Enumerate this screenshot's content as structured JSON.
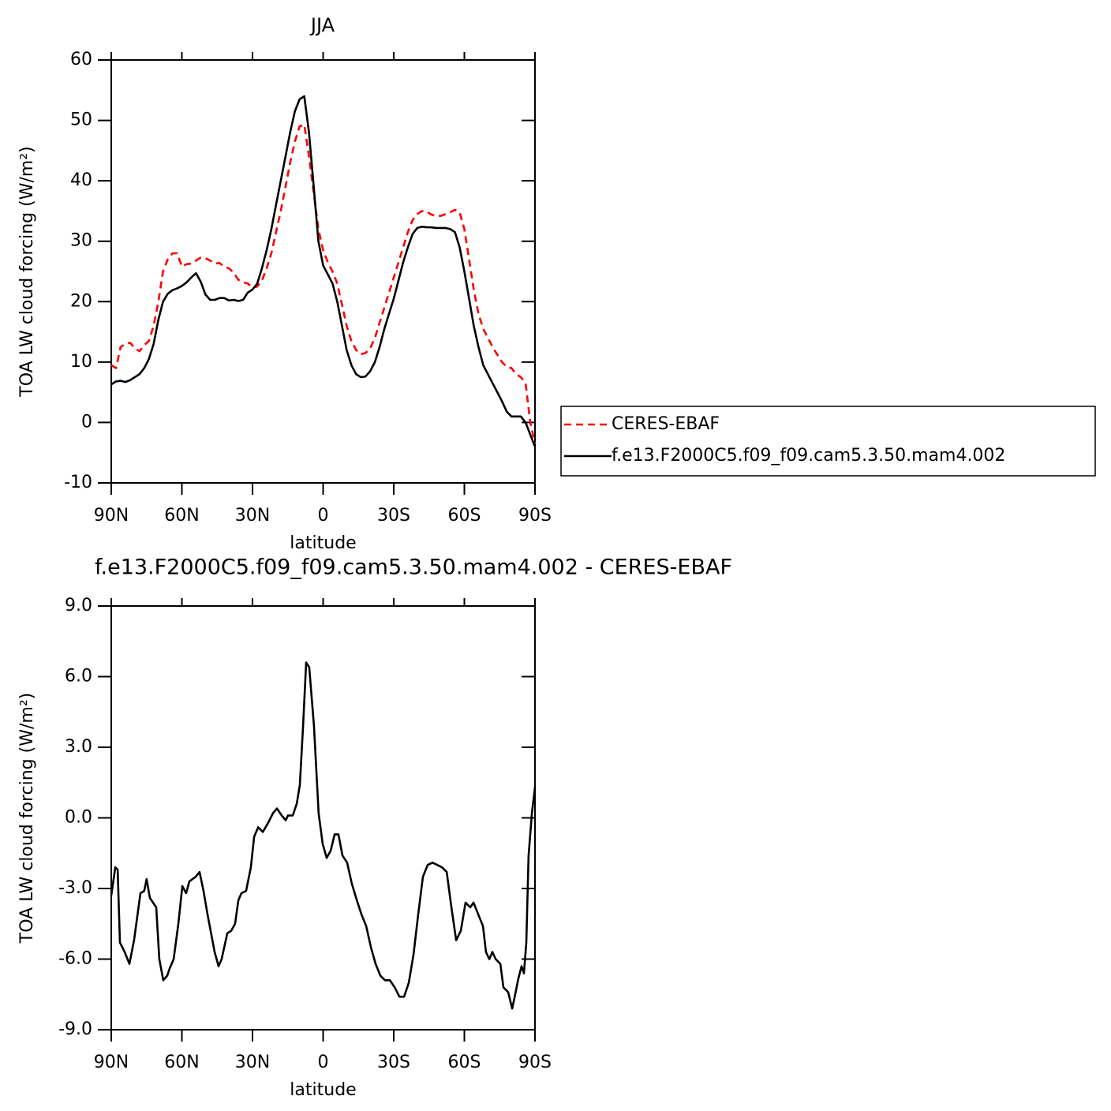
{
  "chart_data": [
    {
      "type": "line",
      "title": "JJA",
      "x_label": "latitude",
      "y_label": "TOA LW cloud forcing (W/m²)",
      "x": [
        90,
        88,
        86,
        84,
        82,
        80,
        78,
        76,
        74,
        72,
        70,
        68,
        66,
        64,
        62,
        60,
        58,
        56,
        54,
        52,
        50,
        48,
        46,
        44,
        42,
        40,
        38,
        36,
        34,
        32,
        30,
        28,
        26,
        24,
        22,
        20,
        18,
        16,
        14,
        12,
        10,
        8,
        6,
        4,
        2,
        0,
        -2,
        -4,
        -6,
        -8,
        -10,
        -12,
        -14,
        -16,
        -18,
        -20,
        -22,
        -24,
        -26,
        -28,
        -30,
        -32,
        -34,
        -36,
        -38,
        -40,
        -42,
        -44,
        -46,
        -48,
        -50,
        -52,
        -54,
        -56,
        -58,
        -60,
        -62,
        -64,
        -66,
        -68,
        -70,
        -72,
        -74,
        -76,
        -78,
        -80,
        -82,
        -84,
        -86,
        -88,
        -90
      ],
      "series": [
        {
          "name": "CERES-EBAF",
          "color": "#ff0000",
          "line_style": "dashed",
          "values": [
            9.5,
            9,
            12.5,
            13,
            13.2,
            12.3,
            11.8,
            12.8,
            13.5,
            16,
            20,
            25,
            27,
            28,
            28,
            25.8,
            26.2,
            26.3,
            26.8,
            27.3,
            27.2,
            26.8,
            26.3,
            26.4,
            25.8,
            25.5,
            24.8,
            23.6,
            23.2,
            23,
            22.3,
            22.5,
            23.5,
            25.5,
            28,
            31.5,
            35,
            39,
            43,
            46.5,
            49,
            49.3,
            44,
            38,
            32,
            28.5,
            26.5,
            25,
            23,
            19.5,
            16,
            13.5,
            12,
            11.3,
            11.5,
            12.3,
            14,
            16.5,
            19,
            21.5,
            24,
            26.5,
            29,
            31.5,
            33.5,
            34.5,
            35,
            34.9,
            34.4,
            34.2,
            34.2,
            34.5,
            34.8,
            35.2,
            34.8,
            32,
            27,
            22,
            18,
            15.5,
            14,
            12.5,
            11.2,
            10,
            9.2,
            9,
            8,
            7.5,
            6.5,
            0,
            -3.5
          ]
        },
        {
          "name": "f.e13.F2000C5.f09_f09.cam5.3.50.mam4.002",
          "color": "#000000",
          "line_style": "solid",
          "values": [
            6.3,
            6.8,
            6.9,
            6.7,
            7,
            7.5,
            8,
            9,
            10.5,
            13,
            17,
            20,
            21.3,
            21.9,
            22.2,
            22.6,
            23.2,
            24,
            24.7,
            23.3,
            21.2,
            20.3,
            20.3,
            20.6,
            20.6,
            20.2,
            20.3,
            20.1,
            20.3,
            21.5,
            22,
            23,
            25.5,
            28.5,
            32,
            36,
            40,
            44,
            48,
            51.5,
            53.5,
            54,
            48,
            39,
            30,
            26,
            24.5,
            23,
            20,
            16,
            12,
            9.5,
            8,
            7.5,
            7.6,
            8.5,
            10,
            12.5,
            15.5,
            18,
            20.5,
            23.5,
            26.5,
            29,
            31.2,
            32.2,
            32.4,
            32.3,
            32.3,
            32.2,
            32.2,
            32.2,
            32,
            31.5,
            29,
            25,
            20.5,
            16,
            12.5,
            9.5,
            8,
            6.5,
            5,
            3.5,
            1.8,
            1,
            1,
            1,
            0,
            -2,
            -4
          ]
        }
      ],
      "xlim": [
        90,
        -90
      ],
      "xticks": [
        {
          "value": 90,
          "label": "90N"
        },
        {
          "value": 60,
          "label": "60N"
        },
        {
          "value": 30,
          "label": "30N"
        },
        0,
        {
          "value": -30,
          "label": "30S"
        },
        {
          "value": -60,
          "label": "60S"
        },
        {
          "value": -90,
          "label": "90S"
        }
      ],
      "ylim": [
        -10,
        60
      ],
      "yticks": [
        -10,
        0,
        10,
        20,
        30,
        40,
        50,
        60
      ],
      "legend": "right"
    },
    {
      "type": "line",
      "title": "f.e13.F2000C5.f09_f09.cam5.3.50.mam4.002 - CERES-EBAF",
      "x_label": "latitude",
      "y_label": "TOA LW cloud forcing (W/m²)",
      "x": [
        90,
        88.3,
        87.3,
        86.3,
        84.3,
        82.3,
        80.3,
        77.6,
        76,
        75,
        73.6,
        70.9,
        69.6,
        67.9,
        66.2,
        65.2,
        63.5,
        61.5,
        59.8,
        58.2,
        56.8,
        54.1,
        52.5,
        50.8,
        49.1,
        46.1,
        44.4,
        43.1,
        40.7,
        39.1,
        37.4,
        36,
        34.7,
        32.7,
        30.7,
        29.3,
        27.6,
        25.6,
        23.3,
        21.3,
        19.6,
        17.6,
        15.9,
        14.9,
        12.9,
        11.2,
        9.9,
        8.5,
        7.2,
        5.9,
        3.9,
        1.9,
        0.2,
        -1.5,
        -3.2,
        -4.9,
        -6.5,
        -8.2,
        -10.2,
        -12.2,
        -14.3,
        -16.3,
        -18.3,
        -20.3,
        -22.3,
        -24.3,
        -26.3,
        -28.4,
        -30.4,
        -32.4,
        -34.4,
        -36.4,
        -38.4,
        -40.4,
        -42.4,
        -44.4,
        -46.5,
        -48.5,
        -50.5,
        -52.5,
        -54.5,
        -56.5,
        -58.5,
        -60.5,
        -62.5,
        -63.9,
        -65.9,
        -67.9,
        -69.2,
        -70.6,
        -71.9,
        -73.3,
        -75.3,
        -76.6,
        -78.6,
        -80.3,
        -81.6,
        -83,
        -84.3,
        -85.3,
        -86.3,
        -87.3,
        -88.7,
        -90
      ],
      "values": [
        -3.3,
        -2.1,
        -2.2,
        -5.3,
        -5.7,
        -6.2,
        -5.2,
        -3.2,
        -3.1,
        -2.6,
        -3.4,
        -3.8,
        -6,
        -6.9,
        -6.7,
        -6.4,
        -6,
        -4.5,
        -2.9,
        -3.2,
        -2.7,
        -2.5,
        -2.3,
        -3.1,
        -4.1,
        -5.7,
        -6.3,
        -6,
        -4.9,
        -4.8,
        -4.5,
        -3.5,
        -3.2,
        -3.1,
        -2.1,
        -0.8,
        -0.4,
        -0.6,
        -0.2,
        0.2,
        0.4,
        0.1,
        -0.1,
        0.1,
        0.1,
        0.6,
        1.4,
        3.9,
        6.6,
        6.4,
        3.9,
        0.2,
        -1.1,
        -1.7,
        -1.4,
        -0.7,
        -0.7,
        -1.6,
        -1.9,
        -2.8,
        -3.5,
        -4.1,
        -4.6,
        -5.5,
        -6.2,
        -6.7,
        -6.9,
        -6.9,
        -7.2,
        -7.6,
        -7.6,
        -7,
        -5.8,
        -4.1,
        -2.5,
        -2,
        -1.9,
        -2,
        -2.1,
        -2.3,
        -3.8,
        -5.2,
        -4.8,
        -3.6,
        -3.8,
        -3.6,
        -4.1,
        -4.6,
        -5.7,
        -6,
        -5.7,
        -6,
        -6.2,
        -7.2,
        -7.4,
        -8.1,
        -7.5,
        -6.8,
        -6.3,
        -6.6,
        -5.3,
        -1.6,
        0.2,
        1.3
      ],
      "color": "#000000",
      "line_style": "solid",
      "xlim": [
        90,
        -90
      ],
      "xticks": [
        {
          "value": 90,
          "label": "90N"
        },
        {
          "value": 60,
          "label": "60N"
        },
        {
          "value": 30,
          "label": "30N"
        },
        0,
        {
          "value": -30,
          "label": "30S"
        },
        {
          "value": -60,
          "label": "60S"
        },
        {
          "value": -90,
          "label": "90S"
        }
      ],
      "ylim": [
        -9,
        9
      ],
      "yticks": [
        {
          "value": -9,
          "label": "-9.0"
        },
        {
          "value": -6,
          "label": "-6.0"
        },
        {
          "value": -3,
          "label": "-3.0"
        },
        {
          "value": 0,
          "label": "0.0"
        },
        {
          "value": 3,
          "label": "3.0"
        },
        {
          "value": 6,
          "label": "6.0"
        },
        {
          "value": 9,
          "label": "9.0"
        }
      ]
    }
  ]
}
